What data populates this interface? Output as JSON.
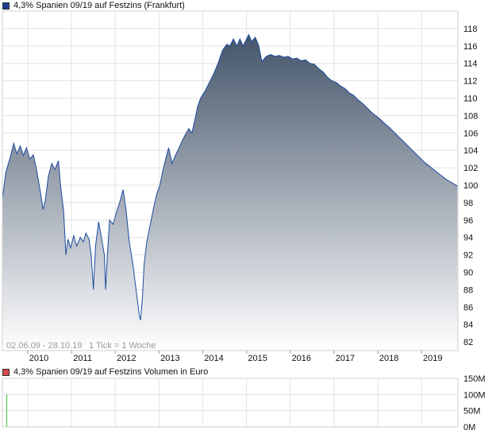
{
  "price_legend": {
    "label": "4,3% Spanien 09/19 auf Festzins (Frankfurt)",
    "color": "#1c3f94"
  },
  "volume_legend": {
    "label": "4,3% Spanien 09/19 auf Festzins Volumen in Euro",
    "color": "#d9474e"
  },
  "info": {
    "range": "02.06.09 - 28.10.19",
    "tick": "1 Tick = 1 Woche"
  },
  "colors": {
    "line": "#1c4aa0",
    "fill_top": "#44546a",
    "fill_bottom": "#ffffff",
    "grid": "#e3e3e3",
    "volume_bar": "#3ac23a"
  },
  "chart_data": [
    {
      "type": "area",
      "title": "4,3% Spanien 09/19 auf Festzins (Frankfurt)",
      "xlabel": "",
      "ylabel": "",
      "ylim": [
        81,
        120
      ],
      "xlim": [
        2009.42,
        2019.83
      ],
      "grid": true,
      "x_ticks": [
        "2010",
        "2011",
        "2012",
        "2013",
        "2014",
        "2015",
        "2016",
        "2017",
        "2018",
        "2019"
      ],
      "y_ticks": [
        "82",
        "84",
        "86",
        "88",
        "90",
        "92",
        "94",
        "96",
        "98",
        "100",
        "102",
        "104",
        "106",
        "108",
        "110",
        "112",
        "114",
        "116",
        "118"
      ],
      "series": [
        {
          "name": "4,3% Spanien 09/19 auf Festzins",
          "points": [
            [
              2009.42,
              98.4
            ],
            [
              2009.5,
              101.5
            ],
            [
              2009.6,
              103.2
            ],
            [
              2009.68,
              104.8
            ],
            [
              2009.75,
              103.6
            ],
            [
              2009.83,
              104.5
            ],
            [
              2009.9,
              103.4
            ],
            [
              2009.97,
              104.3
            ],
            [
              2010.05,
              103.0
            ],
            [
              2010.13,
              103.5
            ],
            [
              2010.2,
              101.8
            ],
            [
              2010.28,
              99.5
            ],
            [
              2010.35,
              97.2
            ],
            [
              2010.4,
              98.2
            ],
            [
              2010.47,
              101.0
            ],
            [
              2010.55,
              102.5
            ],
            [
              2010.62,
              101.8
            ],
            [
              2010.7,
              102.8
            ],
            [
              2010.75,
              100.0
            ],
            [
              2010.82,
              97.0
            ],
            [
              2010.87,
              92.0
            ],
            [
              2010.92,
              93.8
            ],
            [
              2010.98,
              92.8
            ],
            [
              2011.05,
              94.2
            ],
            [
              2011.12,
              93.0
            ],
            [
              2011.2,
              94.0
            ],
            [
              2011.27,
              93.5
            ],
            [
              2011.33,
              94.5
            ],
            [
              2011.4,
              93.8
            ],
            [
              2011.45,
              92.0
            ],
            [
              2011.5,
              88.0
            ],
            [
              2011.55,
              93.0
            ],
            [
              2011.62,
              95.8
            ],
            [
              2011.7,
              93.5
            ],
            [
              2011.75,
              92.0
            ],
            [
              2011.78,
              88.0
            ],
            [
              2011.82,
              92.0
            ],
            [
              2011.87,
              96.0
            ],
            [
              2011.95,
              95.5
            ],
            [
              2012.02,
              96.8
            ],
            [
              2012.1,
              98.0
            ],
            [
              2012.18,
              99.5
            ],
            [
              2012.25,
              97.0
            ],
            [
              2012.32,
              93.5
            ],
            [
              2012.4,
              91.0
            ],
            [
              2012.45,
              89.0
            ],
            [
              2012.5,
              87.0
            ],
            [
              2012.55,
              85.0
            ],
            [
              2012.58,
              84.5
            ],
            [
              2012.62,
              87.0
            ],
            [
              2012.66,
              91.0
            ],
            [
              2012.72,
              93.5
            ],
            [
              2012.8,
              95.5
            ],
            [
              2012.88,
              97.5
            ],
            [
              2012.95,
              99.0
            ],
            [
              2013.02,
              100.0
            ],
            [
              2013.08,
              101.5
            ],
            [
              2013.15,
              103.0
            ],
            [
              2013.22,
              104.3
            ],
            [
              2013.3,
              102.5
            ],
            [
              2013.38,
              103.5
            ],
            [
              2013.45,
              104.2
            ],
            [
              2013.52,
              105.0
            ],
            [
              2013.6,
              105.8
            ],
            [
              2013.68,
              106.5
            ],
            [
              2013.75,
              106.0
            ],
            [
              2013.82,
              107.5
            ],
            [
              2013.88,
              109.0
            ],
            [
              2013.95,
              110.0
            ],
            [
              2014.05,
              110.8
            ],
            [
              2014.15,
              111.8
            ],
            [
              2014.25,
              112.8
            ],
            [
              2014.35,
              114.0
            ],
            [
              2014.45,
              115.5
            ],
            [
              2014.55,
              116.2
            ],
            [
              2014.62,
              116.0
            ],
            [
              2014.7,
              116.8
            ],
            [
              2014.78,
              116.0
            ],
            [
              2014.85,
              116.8
            ],
            [
              2014.92,
              116.0
            ],
            [
              2015.0,
              116.8
            ],
            [
              2015.05,
              117.3
            ],
            [
              2015.12,
              116.5
            ],
            [
              2015.2,
              117.0
            ],
            [
              2015.28,
              116.0
            ],
            [
              2015.35,
              114.2
            ],
            [
              2015.45,
              114.8
            ],
            [
              2015.55,
              115.0
            ],
            [
              2015.65,
              114.8
            ],
            [
              2015.75,
              114.9
            ],
            [
              2015.85,
              114.7
            ],
            [
              2015.95,
              114.8
            ],
            [
              2016.05,
              114.5
            ],
            [
              2016.15,
              114.6
            ],
            [
              2016.25,
              114.3
            ],
            [
              2016.35,
              114.4
            ],
            [
              2016.45,
              114.0
            ],
            [
              2016.55,
              113.9
            ],
            [
              2016.65,
              113.4
            ],
            [
              2016.75,
              113.0
            ],
            [
              2016.85,
              112.4
            ],
            [
              2016.95,
              112.0
            ],
            [
              2017.05,
              111.8
            ],
            [
              2017.15,
              111.4
            ],
            [
              2017.25,
              111.1
            ],
            [
              2017.35,
              110.6
            ],
            [
              2017.45,
              110.3
            ],
            [
              2017.55,
              109.8
            ],
            [
              2017.65,
              109.4
            ],
            [
              2017.75,
              108.9
            ],
            [
              2017.85,
              108.4
            ],
            [
              2017.95,
              108.0
            ],
            [
              2018.05,
              107.6
            ],
            [
              2018.15,
              107.1
            ],
            [
              2018.25,
              106.7
            ],
            [
              2018.35,
              106.2
            ],
            [
              2018.45,
              105.7
            ],
            [
              2018.55,
              105.2
            ],
            [
              2018.65,
              104.7
            ],
            [
              2018.75,
              104.2
            ],
            [
              2018.85,
              103.7
            ],
            [
              2018.95,
              103.2
            ],
            [
              2019.05,
              102.7
            ],
            [
              2019.15,
              102.3
            ],
            [
              2019.25,
              101.9
            ],
            [
              2019.35,
              101.5
            ],
            [
              2019.45,
              101.1
            ],
            [
              2019.55,
              100.7
            ],
            [
              2019.65,
              100.4
            ],
            [
              2019.75,
              100.1
            ],
            [
              2019.82,
              99.9
            ]
          ]
        }
      ]
    },
    {
      "type": "bar",
      "title": "4,3% Spanien 09/19 auf Festzins Volumen in Euro",
      "ylim": [
        0,
        150
      ],
      "y_ticks": [
        "0M",
        "50M",
        "100M",
        "150M"
      ],
      "grid": true,
      "series": [
        {
          "name": "4,3% Spanien 09/19 auf Festzins Volumen in Euro",
          "points": [
            [
              2009.52,
              100
            ],
            [
              2011.0,
              2
            ],
            [
              2012.3,
              2
            ],
            [
              2013.0,
              1.5
            ],
            [
              2013.5,
              1
            ],
            [
              2014.2,
              1
            ],
            [
              2016.0,
              1
            ]
          ]
        }
      ]
    }
  ]
}
